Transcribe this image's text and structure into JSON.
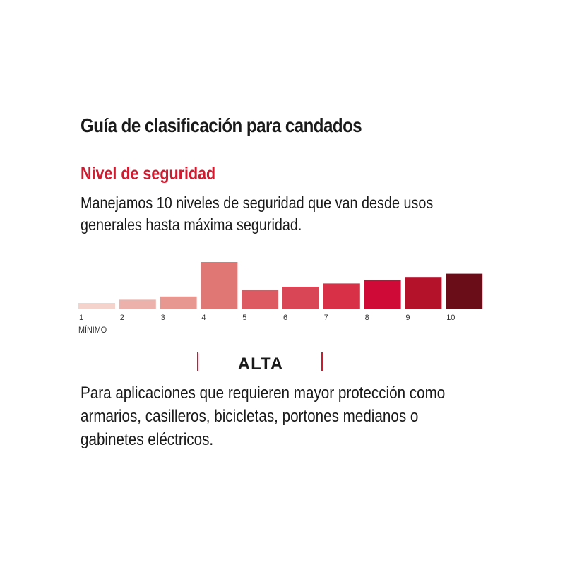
{
  "guide": {
    "title": "Guía de clasificación para candados",
    "section_title": "Nivel de seguridad",
    "description_lines": [
      "Manejamos 10 niveles de seguridad que van desde usos",
      "generales hasta máxima seguridad."
    ]
  },
  "scale": {
    "min_label": "MÍNIMO",
    "highlighted_level": 4,
    "levels": [
      {
        "label": "1",
        "value": 1,
        "color": "#f4d3cd"
      },
      {
        "label": "2",
        "value": 2,
        "color": "#ecb1aa"
      },
      {
        "label": "3",
        "value": 3,
        "color": "#e89790"
      },
      {
        "label": "4",
        "value": 4,
        "color": "#e07775"
      },
      {
        "label": "5",
        "value": 5,
        "color": "#dd5a62"
      },
      {
        "label": "6",
        "value": 6,
        "color": "#d94656"
      },
      {
        "label": "7",
        "value": 7,
        "color": "#d83047"
      },
      {
        "label": "8",
        "value": 8,
        "color": "#cf0a36"
      },
      {
        "label": "9",
        "value": 9,
        "color": "#b4112b"
      },
      {
        "label": "10",
        "value": 10,
        "color": "#6b0d18"
      }
    ]
  },
  "category": {
    "name": "ALTA",
    "accent_color": "#d1192f",
    "description_lines": [
      "Para aplicaciones que requieren mayor protección como",
      "armarios, casilleros, bicicletas, portones medianos o",
      "gabinetes eléctricos."
    ]
  }
}
